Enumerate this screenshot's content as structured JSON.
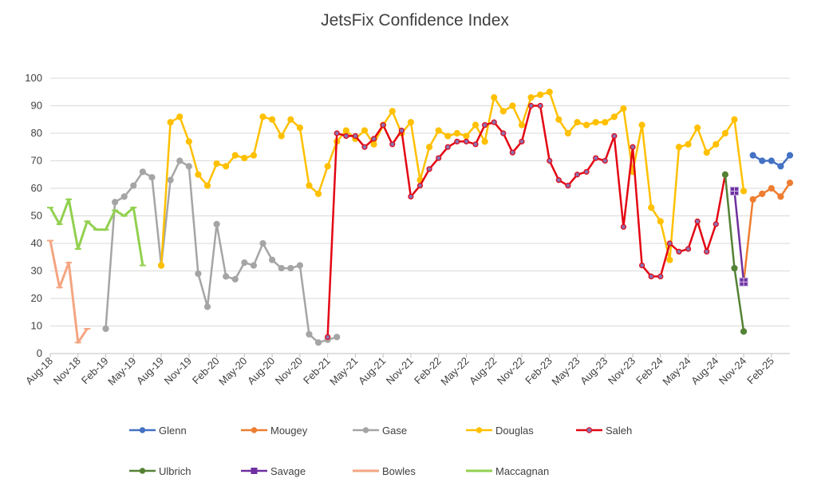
{
  "chart_data": {
    "type": "line",
    "title": "JetsFix Confidence Index",
    "ylim": [
      0,
      100
    ],
    "yticks": [
      0,
      10,
      20,
      30,
      40,
      50,
      60,
      70,
      80,
      90,
      100
    ],
    "grid": true,
    "legend_placement": "bottom",
    "x_tick_labels": [
      "Aug-18",
      "Nov-18",
      "Feb-19",
      "May-19",
      "Aug-19",
      "Nov-19",
      "Feb-20",
      "May-20",
      "Aug-20",
      "Nov-20",
      "Feb-21",
      "May-21",
      "Aug-21",
      "Nov-21",
      "Feb-22",
      "May-22",
      "Aug-22",
      "Nov-22",
      "Feb-23",
      "May-23",
      "Aug-23",
      "Nov-23",
      "Feb-24",
      "May-24",
      "Aug-24",
      "Nov-24",
      "Feb-25"
    ],
    "x": [
      "2018-08",
      "2018-09",
      "2018-10",
      "2018-11",
      "2018-12",
      "2019-01",
      "2019-02",
      "2019-03",
      "2019-04",
      "2019-05",
      "2019-06",
      "2019-07",
      "2019-08",
      "2019-09",
      "2019-10",
      "2019-11",
      "2019-12",
      "2020-01",
      "2020-02",
      "2020-03",
      "2020-04",
      "2020-05",
      "2020-06",
      "2020-07",
      "2020-08",
      "2020-09",
      "2020-10",
      "2020-11",
      "2020-12",
      "2021-01",
      "2021-02",
      "2021-03",
      "2021-04",
      "2021-05",
      "2021-06",
      "2021-07",
      "2021-08",
      "2021-09",
      "2021-10",
      "2021-11",
      "2021-12",
      "2022-01",
      "2022-02",
      "2022-03",
      "2022-04",
      "2022-05",
      "2022-06",
      "2022-07",
      "2022-08",
      "2022-09",
      "2022-10",
      "2022-11",
      "2022-12",
      "2023-01",
      "2023-02",
      "2023-03",
      "2023-04",
      "2023-05",
      "2023-06",
      "2023-07",
      "2023-08",
      "2023-09",
      "2023-10",
      "2023-11",
      "2023-12",
      "2024-01",
      "2024-02",
      "2024-03",
      "2024-04",
      "2024-05",
      "2024-06",
      "2024-07",
      "2024-08",
      "2024-09",
      "2024-10",
      "2024-11",
      "2024-12",
      "2025-01",
      "2025-02",
      "2025-03",
      "2025-04"
    ],
    "series": [
      {
        "name": "Glenn",
        "color": "#4472c4",
        "marker": "circle",
        "values": [
          null,
          null,
          null,
          null,
          null,
          null,
          null,
          null,
          null,
          null,
          null,
          null,
          null,
          null,
          null,
          null,
          null,
          null,
          null,
          null,
          null,
          null,
          null,
          null,
          null,
          null,
          null,
          null,
          null,
          null,
          null,
          null,
          null,
          null,
          null,
          null,
          null,
          null,
          null,
          null,
          null,
          null,
          null,
          null,
          null,
          null,
          null,
          null,
          null,
          null,
          null,
          null,
          null,
          null,
          null,
          null,
          null,
          null,
          null,
          null,
          null,
          null,
          null,
          null,
          null,
          null,
          null,
          null,
          null,
          null,
          null,
          null,
          null,
          null,
          null,
          null,
          72,
          70,
          70,
          68,
          72
        ]
      },
      {
        "name": "Mougey",
        "color": "#ed7d31",
        "marker": "circle",
        "values": [
          null,
          null,
          null,
          null,
          null,
          null,
          null,
          null,
          null,
          null,
          null,
          null,
          null,
          null,
          null,
          null,
          null,
          null,
          null,
          null,
          null,
          null,
          null,
          null,
          null,
          null,
          null,
          null,
          null,
          null,
          null,
          null,
          null,
          null,
          null,
          null,
          null,
          null,
          null,
          null,
          null,
          null,
          null,
          null,
          null,
          null,
          null,
          null,
          null,
          null,
          null,
          null,
          null,
          null,
          null,
          null,
          null,
          null,
          null,
          null,
          null,
          null,
          null,
          null,
          null,
          null,
          null,
          null,
          null,
          null,
          null,
          null,
          null,
          null,
          null,
          26,
          56,
          58,
          60,
          57,
          62
        ]
      },
      {
        "name": "Gase",
        "color": "#a5a5a5",
        "marker": "circle",
        "values": [
          null,
          null,
          null,
          null,
          null,
          null,
          9,
          55,
          57,
          61,
          66,
          64,
          32,
          63,
          70,
          68,
          29,
          17,
          47,
          28,
          27,
          33,
          32,
          40,
          34,
          31,
          31,
          32,
          7,
          4,
          5,
          6,
          null,
          null,
          null,
          null,
          null,
          null,
          null,
          null,
          null,
          null,
          null,
          null,
          null,
          null,
          null,
          null,
          null,
          null,
          null,
          null,
          null,
          null,
          null,
          null,
          null,
          null,
          null,
          null,
          null,
          null,
          null,
          null,
          null,
          null,
          null,
          null,
          null,
          null,
          null,
          null,
          null,
          null,
          null,
          null,
          null,
          null,
          null,
          null,
          null
        ]
      },
      {
        "name": "Douglas",
        "color": "#ffc000",
        "marker": "circle",
        "values": [
          null,
          null,
          null,
          null,
          null,
          null,
          null,
          null,
          null,
          null,
          null,
          null,
          32,
          84,
          86,
          77,
          65,
          61,
          69,
          68,
          72,
          71,
          72,
          86,
          85,
          79,
          85,
          82,
          61,
          58,
          68,
          77,
          81,
          78,
          81,
          76,
          83,
          88,
          80,
          84,
          63,
          75,
          81,
          79,
          80,
          79,
          83,
          77,
          93,
          88,
          90,
          83,
          93,
          94,
          95,
          85,
          80,
          84,
          83,
          84,
          84,
          86,
          89,
          66,
          83,
          53,
          48,
          34,
          75,
          76,
          82,
          73,
          76,
          80,
          85,
          59,
          null,
          null,
          null,
          null,
          null
        ]
      },
      {
        "name": "Saleh",
        "color": "#e30613",
        "marker": "circle",
        "values": [
          null,
          null,
          null,
          null,
          null,
          null,
          null,
          null,
          null,
          null,
          null,
          null,
          null,
          null,
          null,
          null,
          null,
          null,
          null,
          null,
          null,
          null,
          null,
          null,
          null,
          null,
          null,
          null,
          null,
          null,
          6,
          80,
          79,
          79,
          75,
          78,
          83,
          76,
          81,
          57,
          61,
          67,
          71,
          75,
          77,
          77,
          76,
          83,
          84,
          80,
          73,
          77,
          90,
          90,
          70,
          63,
          61,
          65,
          66,
          71,
          70,
          79,
          46,
          75,
          32,
          28,
          28,
          40,
          37,
          38,
          48,
          37,
          47,
          65,
          null,
          null,
          null,
          null,
          null,
          null,
          null
        ]
      },
      {
        "name": "Ulbrich",
        "color": "#548235",
        "marker": "circle",
        "values": [
          null,
          null,
          null,
          null,
          null,
          null,
          null,
          null,
          null,
          null,
          null,
          null,
          null,
          null,
          null,
          null,
          null,
          null,
          null,
          null,
          null,
          null,
          null,
          null,
          null,
          null,
          null,
          null,
          null,
          null,
          null,
          null,
          null,
          null,
          null,
          null,
          null,
          null,
          null,
          null,
          null,
          null,
          null,
          null,
          null,
          null,
          null,
          null,
          null,
          null,
          null,
          null,
          null,
          null,
          null,
          null,
          null,
          null,
          null,
          null,
          null,
          null,
          null,
          null,
          null,
          null,
          null,
          null,
          null,
          null,
          null,
          null,
          null,
          65,
          31,
          8,
          null,
          null,
          null,
          null,
          null
        ]
      },
      {
        "name": "Savage",
        "color": "#7030a0",
        "marker": "square",
        "values": [
          null,
          null,
          null,
          null,
          null,
          null,
          null,
          null,
          null,
          null,
          null,
          null,
          null,
          null,
          null,
          null,
          null,
          null,
          null,
          null,
          null,
          null,
          null,
          null,
          null,
          null,
          null,
          null,
          null,
          null,
          null,
          null,
          null,
          null,
          null,
          null,
          null,
          null,
          null,
          null,
          null,
          null,
          null,
          null,
          null,
          null,
          null,
          null,
          null,
          null,
          null,
          null,
          null,
          null,
          null,
          null,
          null,
          null,
          null,
          null,
          null,
          null,
          null,
          null,
          null,
          null,
          null,
          null,
          null,
          null,
          null,
          null,
          null,
          null,
          59,
          26,
          null,
          null,
          null,
          null,
          null
        ]
      },
      {
        "name": "Bowles",
        "color": "#f4a582",
        "marker": "dash",
        "values": [
          41,
          24,
          33,
          4,
          9,
          null,
          null,
          null,
          null,
          null,
          null,
          null,
          null,
          null,
          null,
          null,
          null,
          null,
          null,
          null,
          null,
          null,
          null,
          null,
          null,
          null,
          null,
          null,
          null,
          null,
          null,
          null,
          null,
          null,
          null,
          null,
          null,
          null,
          null,
          null,
          null,
          null,
          null,
          null,
          null,
          null,
          null,
          null,
          null,
          null,
          null,
          null,
          null,
          null,
          null,
          null,
          null,
          null,
          null,
          null,
          null,
          null,
          null,
          null,
          null,
          null,
          null,
          null,
          null,
          null,
          null,
          null,
          null,
          null,
          null,
          null,
          null,
          null,
          null,
          null,
          null
        ]
      },
      {
        "name": "Maccagnan",
        "color": "#92d050",
        "marker": "dash",
        "values": [
          53,
          47,
          56,
          38,
          48,
          45,
          45,
          52,
          50,
          53,
          32,
          null,
          null,
          null,
          null,
          null,
          null,
          null,
          null,
          null,
          null,
          null,
          null,
          null,
          null,
          null,
          null,
          null,
          null,
          null,
          null,
          null,
          null,
          null,
          null,
          null,
          null,
          null,
          null,
          null,
          null,
          null,
          null,
          null,
          null,
          null,
          null,
          null,
          null,
          null,
          null,
          null,
          null,
          null,
          null,
          null,
          null,
          null,
          null,
          null,
          null,
          null,
          null,
          null,
          null,
          null,
          null,
          null,
          null,
          null,
          null,
          null,
          null,
          null,
          null,
          null,
          null,
          null,
          null,
          null,
          null
        ]
      }
    ]
  }
}
